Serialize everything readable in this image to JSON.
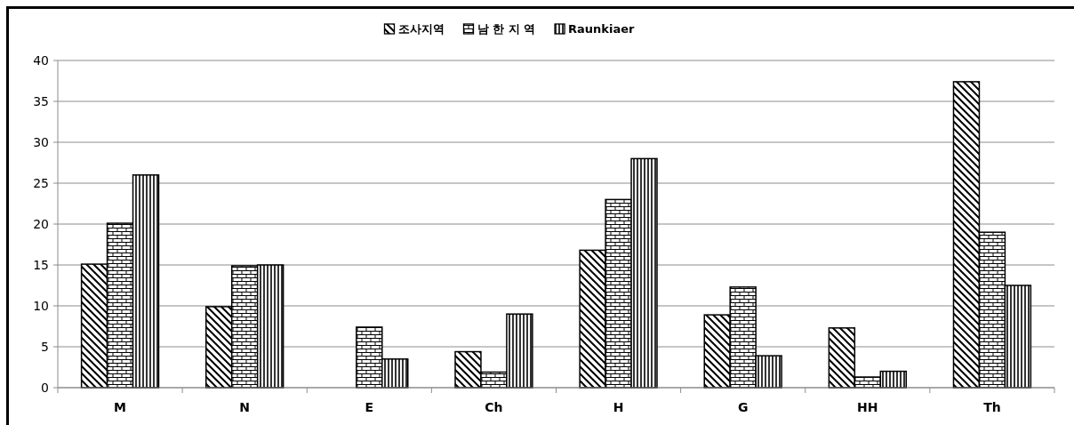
{
  "chart_data": {
    "type": "bar",
    "categories": [
      "M",
      "N",
      "E",
      "Ch",
      "H",
      "G",
      "HH",
      "Th"
    ],
    "series": [
      {
        "name": "조사지역",
        "color": "#000000",
        "values": [
          15.1,
          9.9,
          null,
          4.4,
          16.8,
          8.9,
          7.3,
          37.4
        ]
      },
      {
        "name": "남 한 지 역",
        "color": "#000000",
        "values": [
          20.1,
          14.9,
          7.4,
          1.9,
          23,
          12.3,
          1.3,
          19
        ]
      },
      {
        "name": "Raunkiaer",
        "color": "#000000",
        "values": [
          26,
          15,
          3.5,
          9,
          28,
          3.9,
          2,
          12.5
        ]
      }
    ],
    "ylim": [
      0,
      40
    ],
    "yticks": [
      0,
      5,
      10,
      15,
      20,
      25,
      30,
      35,
      40
    ],
    "grid": "y",
    "legend": "top"
  }
}
